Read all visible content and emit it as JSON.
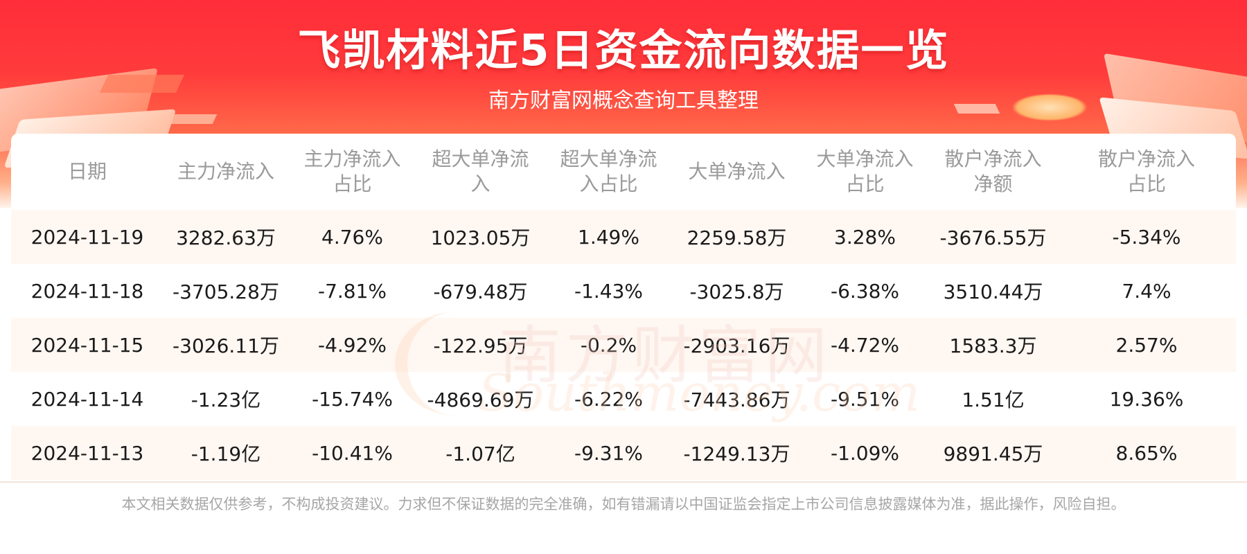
{
  "header": {
    "title": "飞凯材料近5日资金流向数据一览",
    "subtitle": "南方财富网概念查询工具整理"
  },
  "watermark": {
    "cn": "南方财富网",
    "en": "Southmoney.com"
  },
  "table": {
    "columns": [
      {
        "line1": "日期",
        "line2": ""
      },
      {
        "line1": "主力净流入",
        "line2": ""
      },
      {
        "line1": "主力净流入",
        "line2": "占比"
      },
      {
        "line1": "超大单净流",
        "line2": "入"
      },
      {
        "line1": "超大单净流",
        "line2": "入占比"
      },
      {
        "line1": "大单净流入",
        "line2": ""
      },
      {
        "line1": "大单净流入",
        "line2": "占比"
      },
      {
        "line1": "散户净流入",
        "line2": "净额"
      },
      {
        "line1": "散户净流入",
        "line2": "占比"
      }
    ],
    "rows": [
      [
        "2024-11-19",
        "3282.63万",
        "4.76%",
        "1023.05万",
        "1.49%",
        "2259.58万",
        "3.28%",
        "-3676.55万",
        "-5.34%"
      ],
      [
        "2024-11-18",
        "-3705.28万",
        "-7.81%",
        "-679.48万",
        "-1.43%",
        "-3025.8万",
        "-6.38%",
        "3510.44万",
        "7.4%"
      ],
      [
        "2024-11-15",
        "-3026.11万",
        "-4.92%",
        "-122.95万",
        "-0.2%",
        "-2903.16万",
        "-4.72%",
        "1583.3万",
        "2.57%"
      ],
      [
        "2024-11-14",
        "-1.23亿",
        "-15.74%",
        "-4869.69万",
        "-6.22%",
        "-7443.86万",
        "-9.51%",
        "1.51亿",
        "19.36%"
      ],
      [
        "2024-11-13",
        "-1.19亿",
        "-10.41%",
        "-1.07亿",
        "-9.31%",
        "-1249.13万",
        "-1.09%",
        "9891.45万",
        "8.65%"
      ]
    ]
  },
  "footer": {
    "disclaimer": "本文相关数据仅供参考，不构成投资建议。力求但不保证数据的完全准确，如有错漏请以中国证监会指定上市公司信息披露媒体为准，据此操作，风险自担。"
  },
  "colors": {
    "banner_red": "#ff2d3a",
    "row_stripe": "#fff7f2",
    "header_text": "#9a9a9a",
    "body_text": "#1a1a1a"
  }
}
